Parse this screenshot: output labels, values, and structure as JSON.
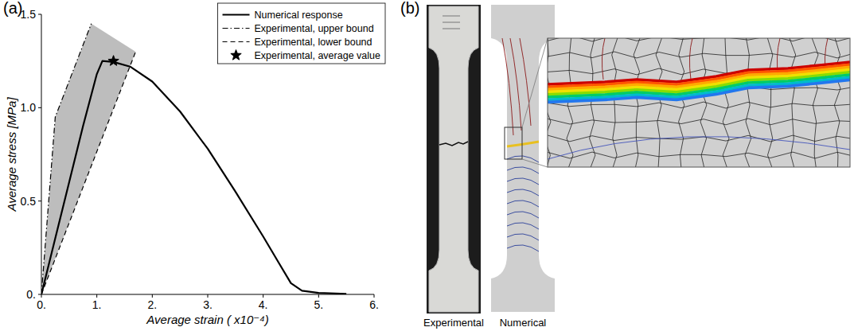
{
  "panels": {
    "a": "(a)",
    "b": "(b)"
  },
  "chart_data": {
    "type": "line",
    "x_label": "Average strain ( x10⁻⁴)",
    "y_label": "Average stress [MPa]",
    "xlim": [
      0,
      6
    ],
    "ylim": [
      0,
      1.5
    ],
    "xticks": [
      {
        "value": 0,
        "label": "0."
      },
      {
        "value": 1,
        "label": "1."
      },
      {
        "value": 2,
        "label": "2."
      },
      {
        "value": 3,
        "label": "3."
      },
      {
        "value": 4,
        "label": "4."
      },
      {
        "value": 5,
        "label": "5."
      },
      {
        "value": 6,
        "label": "6."
      }
    ],
    "yticks": [
      {
        "value": 0,
        "label": "0."
      },
      0.5,
      {
        "value": 1,
        "label": "1.0"
      },
      1.5
    ],
    "grid": false,
    "legend": "top-right",
    "series": [
      {
        "name": "Numerical response",
        "color": "#000000",
        "line_style": "solid",
        "x": [
          0,
          0.25,
          0.5,
          0.75,
          1.0,
          1.1,
          1.3,
          1.6,
          2.0,
          2.5,
          3.0,
          3.5,
          4.0,
          4.3,
          4.5,
          4.7,
          5.0,
          5.5
        ],
        "values": [
          0,
          0.3,
          0.6,
          0.9,
          1.18,
          1.25,
          1.245,
          1.22,
          1.14,
          0.98,
          0.78,
          0.55,
          0.31,
          0.16,
          0.06,
          0.02,
          0.008,
          0.003
        ]
      },
      {
        "name": "Experimental, upper bound",
        "color": "#000000",
        "line_style": "dashdot",
        "x": [
          0,
          0.25,
          0.9
        ],
        "values": [
          0,
          0.95,
          1.45
        ]
      },
      {
        "name": "Experimental, lower bound",
        "color": "#000000",
        "line_style": "dashed",
        "x": [
          0,
          1.7
        ],
        "values": [
          0,
          1.3
        ]
      },
      {
        "name": "Experimental, average value",
        "color": "#000000",
        "type": "scatter",
        "marker": "star",
        "x": [
          1.3
        ],
        "values": [
          1.25
        ]
      }
    ]
  },
  "panel_b": {
    "captions": [
      "Experimental",
      "Numerical"
    ]
  }
}
